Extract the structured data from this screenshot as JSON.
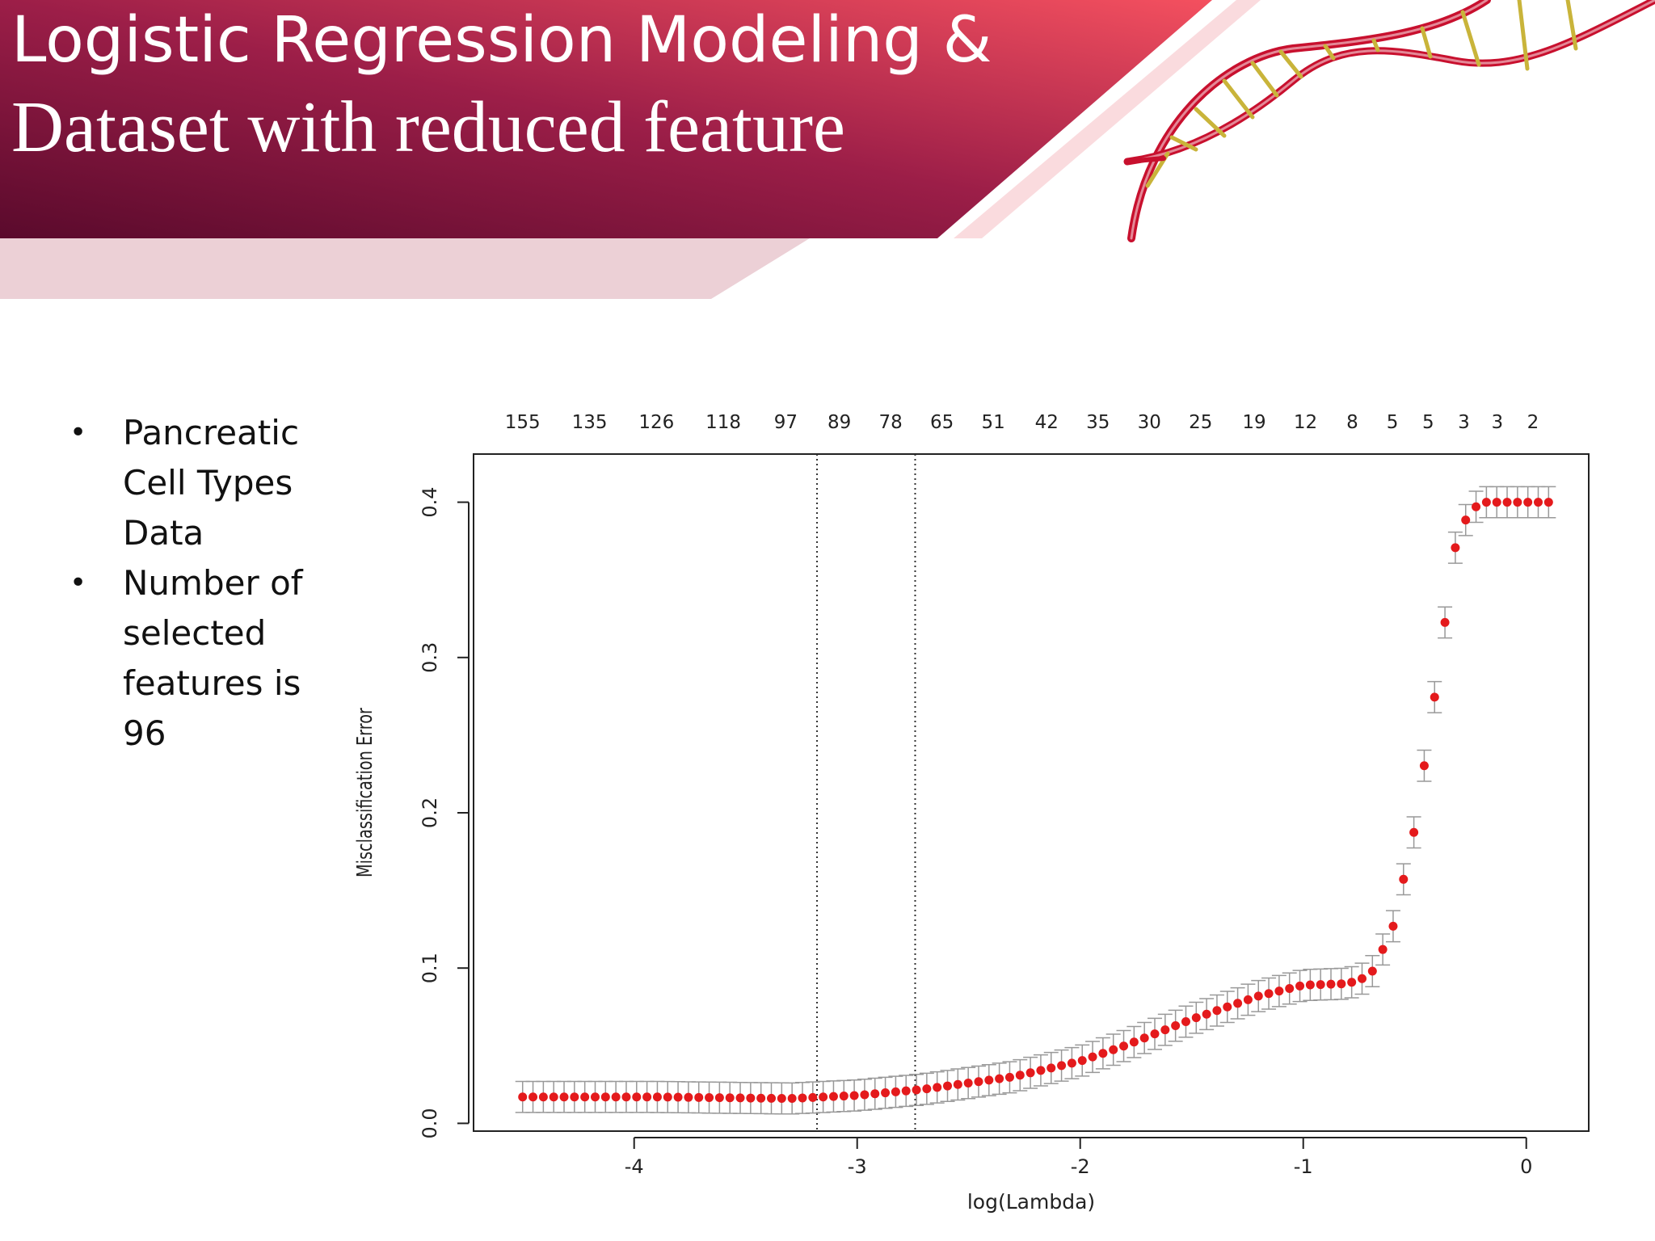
{
  "slide": {
    "title_line_1": "Logistic Regression Modeling &",
    "title_line_2": "Dataset with reduced feature",
    "bullets": [
      "Pancreatic Cell Types Data",
      "Number of selected features is 96"
    ],
    "bullet_symbol": "•"
  },
  "colors": {
    "header_dark": "#5a0a2c",
    "header_mid": "#9c1e48",
    "header_light": "#f4505f",
    "header_lower_band": "#ecd0d6",
    "series_point": "#e41a1c",
    "error_bar": "#999999"
  },
  "chart_data": {
    "type": "scatter",
    "title": "",
    "xlabel": "log(Lambda)",
    "ylabel": "Misclassification Error",
    "xlim": [
      -4.72,
      0.28
    ],
    "ylim": [
      -0.005,
      0.431
    ],
    "x_ticks": [
      -4,
      -3,
      -2,
      -1,
      0
    ],
    "y_ticks": [
      0.0,
      0.1,
      0.2,
      0.3,
      0.4
    ],
    "y_tick_labels": [
      "0.0",
      "0.1",
      "0.2",
      "0.3",
      "0.4"
    ],
    "top_axis": {
      "positions": [
        -4.5,
        -4.2,
        -3.9,
        -3.6,
        -3.32,
        -3.08,
        -2.85,
        -2.62,
        -2.39,
        -2.15,
        -1.92,
        -1.69,
        -1.46,
        -1.22,
        -0.99,
        -0.78,
        -0.6,
        -0.44,
        -0.28,
        -0.13,
        0.03
      ],
      "labels": [
        "155",
        "135",
        "126",
        "118",
        "97",
        "89",
        "78",
        "65",
        "51",
        "42",
        "35",
        "30",
        "25",
        "19",
        "12",
        "8",
        "5",
        "5",
        "3",
        "3",
        "2"
      ]
    },
    "reference_lines_x": [
      -3.18,
      -2.74
    ],
    "grid": false,
    "legend": "none",
    "curve_knots": {
      "x": [
        -4.5,
        -3.9,
        -3.3,
        -3.0,
        -2.7,
        -2.3,
        -2.0,
        -1.8,
        -1.5,
        -1.2,
        -1.0,
        -0.8,
        -0.7,
        -0.6,
        -0.5,
        -0.4,
        -0.32,
        -0.26,
        -0.2,
        0.1
      ],
      "y": [
        0.017,
        0.017,
        0.016,
        0.018,
        0.022,
        0.03,
        0.04,
        0.05,
        0.067,
        0.082,
        0.089,
        0.09,
        0.095,
        0.125,
        0.19,
        0.285,
        0.37,
        0.393,
        0.4,
        0.4
      ]
    },
    "point_count": 100,
    "error_bar_halfwidth": 0.01
  }
}
